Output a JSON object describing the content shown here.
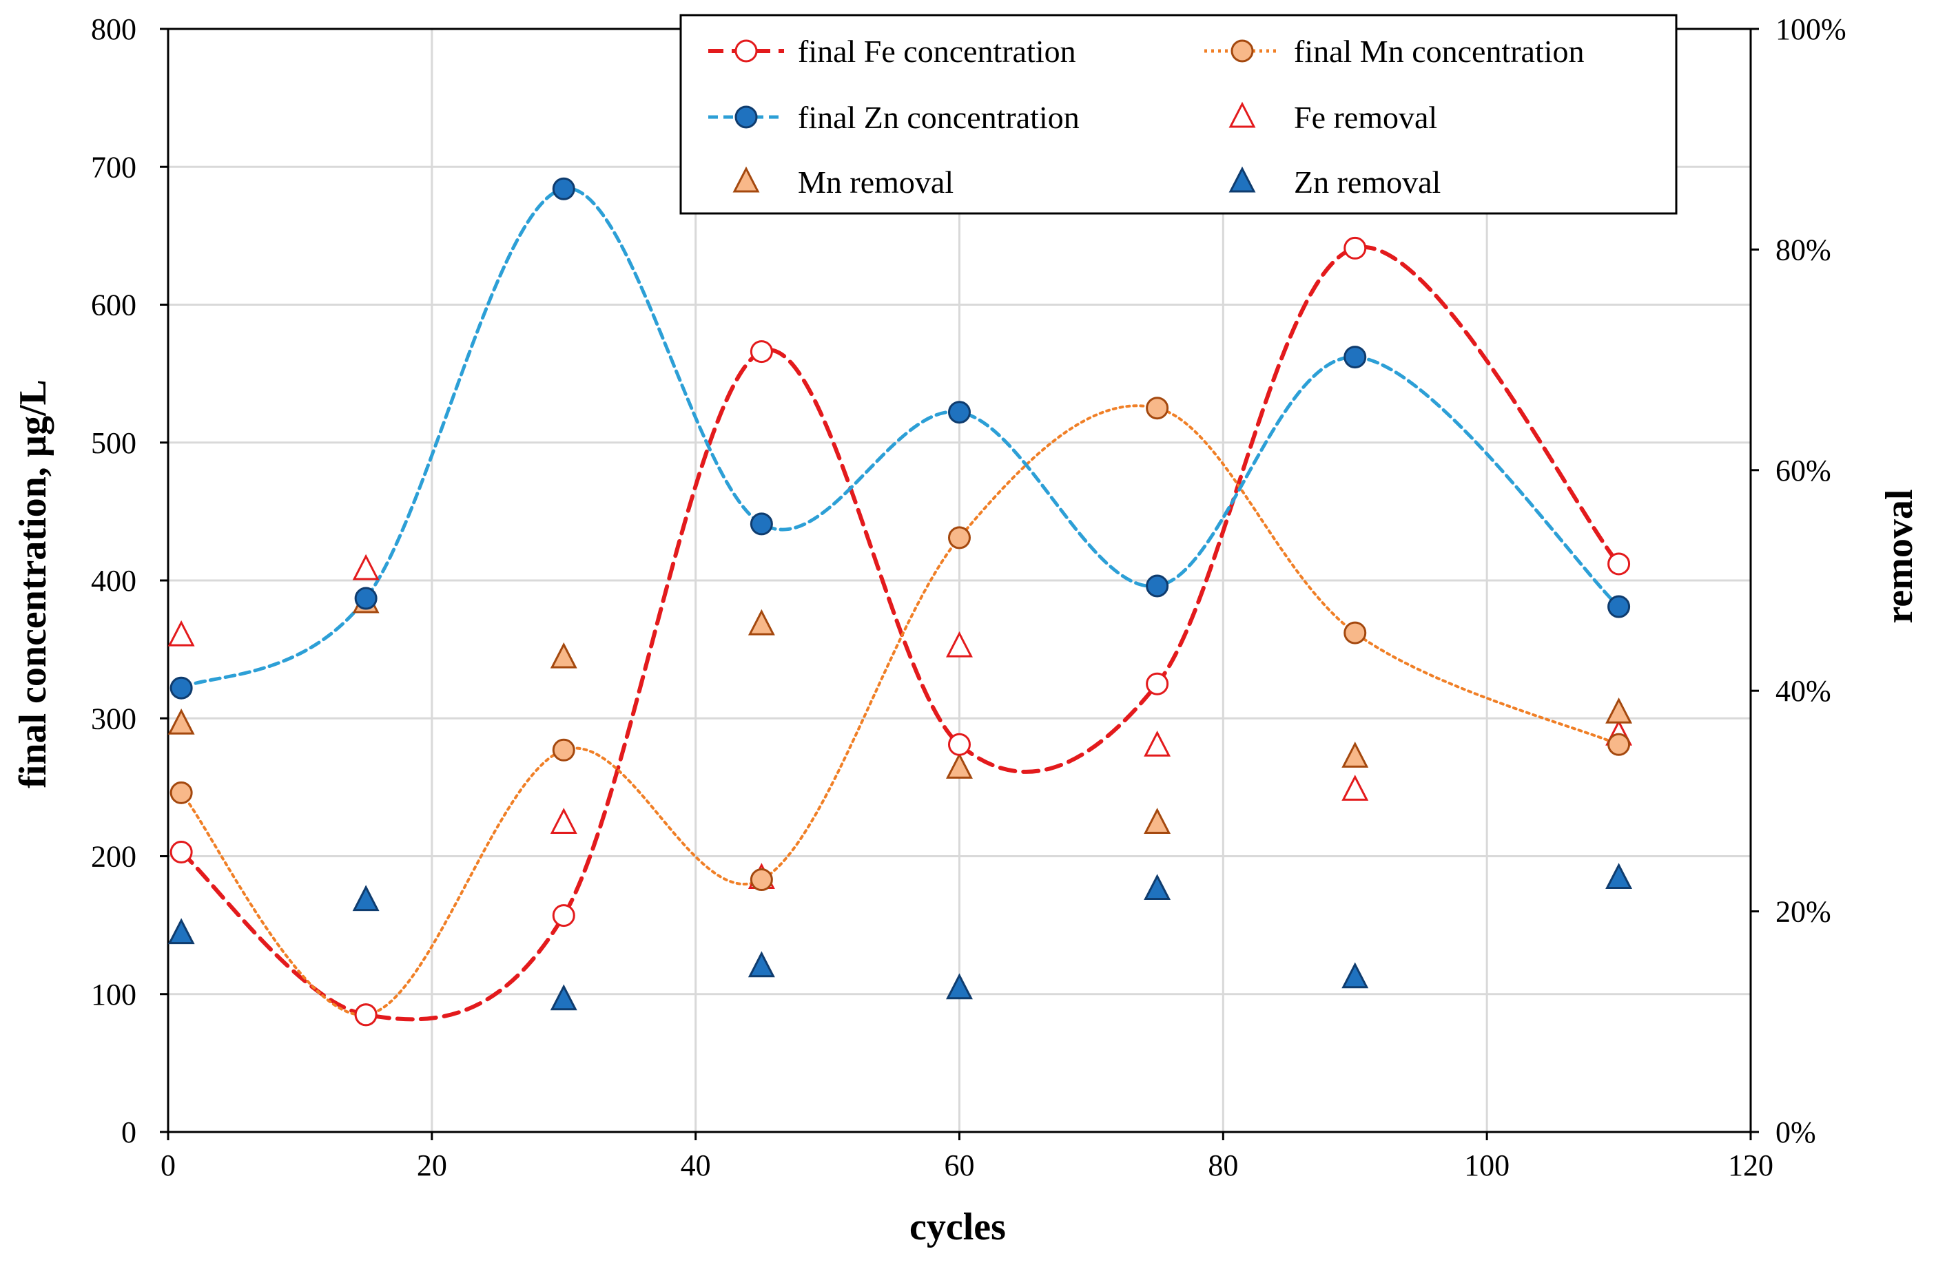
{
  "chart_data": {
    "type": "line",
    "title": "",
    "xlabel": "cycles",
    "ylabel": "final concentration, µg/L",
    "y2label": "removal",
    "xlim": [
      0,
      120
    ],
    "ylim": [
      0,
      800
    ],
    "y2lim": [
      0,
      100
    ],
    "x_ticks": [
      "0",
      "20",
      "40",
      "60",
      "80",
      "100",
      "120"
    ],
    "y_ticks": [
      "0",
      "100",
      "200",
      "300",
      "400",
      "500",
      "600",
      "700",
      "800"
    ],
    "y2_ticks": [
      "0%",
      "20%",
      "40%",
      "60%",
      "80%",
      "100%"
    ],
    "grid": true,
    "legend_position": "top-right",
    "x": [
      1,
      15,
      30,
      45,
      60,
      75,
      90,
      110
    ],
    "series": [
      {
        "name": "final Fe concentration",
        "axis": "left",
        "style": "dashed-line-open-circle",
        "color": "#e31a1c",
        "values": [
          203,
          85,
          157,
          566,
          281,
          325,
          641,
          412
        ]
      },
      {
        "name": "final Mn concentration",
        "axis": "left",
        "style": "dotted-line-filled-circle",
        "color": "#f07f26",
        "fill": "#f8b889",
        "stroke": "#a4480e",
        "values": [
          246,
          85,
          277,
          183,
          431,
          525,
          362,
          281
        ]
      },
      {
        "name": "final Zn concentration",
        "axis": "left",
        "style": "dashed-line-filled-circle",
        "color": "#2c9fd6",
        "fill": "#1f72bf",
        "stroke": "#0f3c6e",
        "values": [
          322,
          387,
          684,
          441,
          522,
          396,
          562,
          381
        ]
      },
      {
        "name": "Fe removal",
        "axis": "right",
        "style": "open-triangle",
        "color": "#e31a1c",
        "values": [
          45,
          51,
          28,
          23,
          44,
          35,
          31,
          36
        ]
      },
      {
        "name": "Mn removal",
        "axis": "right",
        "style": "filled-triangle",
        "fill": "#f8b889",
        "stroke": "#a4480e",
        "values": [
          37,
          48,
          43,
          46,
          33,
          28,
          34,
          38
        ]
      },
      {
        "name": "Zn removal",
        "axis": "right",
        "style": "filled-triangle",
        "fill": "#1f72bf",
        "stroke": "#0f3c6e",
        "values": [
          18,
          21,
          12,
          15,
          13,
          22,
          14,
          23
        ]
      }
    ]
  }
}
